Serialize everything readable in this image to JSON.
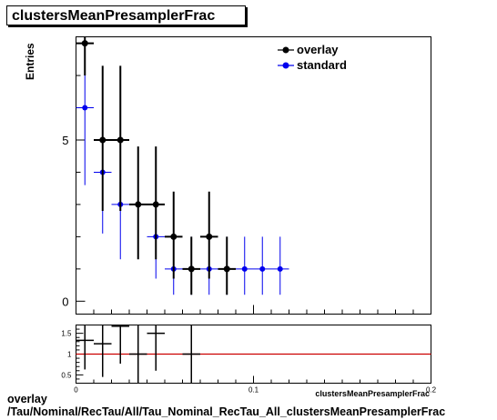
{
  "title": "clustersMeanPresamplerFrac",
  "footer": {
    "line1": "overlay",
    "line2": "/Tau/Nominal/RecTau/All/Tau_Nominal_RecTau_All_clustersMeanPresamplerFrac"
  },
  "colors": {
    "overlay": "#000000",
    "standard": "#0000ee",
    "ratio_line": "#cc0000"
  },
  "chart_data": [
    {
      "type": "scatter",
      "ylabel": "Entries",
      "xlim": [
        0,
        0.2
      ],
      "ylim": [
        -0.4,
        8.2
      ],
      "y_ticks": [
        0,
        5
      ],
      "legend_position": "top-right",
      "bin_width": 0.01,
      "series": [
        {
          "name": "overlay",
          "x": [
            0.005,
            0.015,
            0.025,
            0.035,
            0.045,
            0.055,
            0.065,
            0.075,
            0.085
          ],
          "y": [
            8,
            5,
            5,
            3,
            3,
            2,
            1,
            2,
            1
          ],
          "yerr_low": [
            1.0,
            2.2,
            2.2,
            1.7,
            1.7,
            1.3,
            0.8,
            1.3,
            0.8
          ],
          "yerr_high": [
            1.0,
            2.3,
            2.3,
            1.8,
            1.8,
            1.4,
            1.0,
            1.4,
            1.0
          ]
        },
        {
          "name": "standard",
          "x": [
            0.005,
            0.015,
            0.025,
            0.045,
            0.055,
            0.065,
            0.075,
            0.085,
            0.095,
            0.105,
            0.115
          ],
          "y": [
            6,
            4,
            3,
            2,
            1,
            1,
            1,
            1,
            1,
            1,
            1
          ],
          "yerr_low": [
            2.4,
            1.9,
            1.7,
            1.3,
            0.8,
            0.8,
            0.8,
            0.8,
            0.8,
            0.8,
            0.8
          ],
          "yerr_high": [
            1.2,
            2.0,
            1.8,
            1.0,
            1.0,
            1.0,
            1.0,
            1.0,
            1.0,
            1.0,
            1.0
          ]
        }
      ]
    },
    {
      "type": "scatter",
      "xlabel": "clustersMeanPresamplerFrac",
      "xlim": [
        0,
        0.2
      ],
      "ylim": [
        0.3,
        1.7
      ],
      "x_ticks": [
        0,
        0.1,
        0.2
      ],
      "y_ticks": [
        0.5,
        1,
        1.5
      ],
      "reference_line": 1,
      "series": [
        {
          "name": "ratio",
          "x": [
            0.005,
            0.015,
            0.025,
            0.035,
            0.045,
            0.065
          ],
          "y": [
            1.33,
            1.25,
            1.67,
            1.0,
            1.5,
            1.0
          ],
          "yerr_low": [
            0.7,
            0.8,
            0.9,
            1.0,
            0.9,
            1.0
          ],
          "yerr_high": [
            0.7,
            0.8,
            0.9,
            1.0,
            0.9,
            1.0
          ]
        }
      ]
    }
  ]
}
